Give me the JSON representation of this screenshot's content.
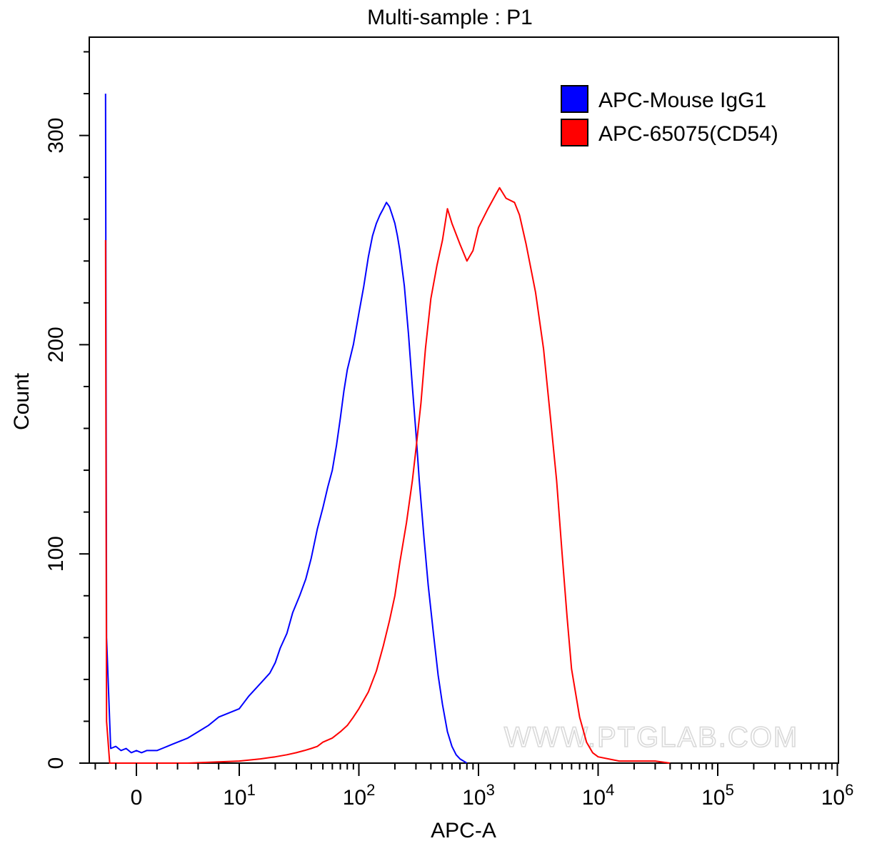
{
  "chart_data": {
    "type": "line",
    "title": "Multi-sample : P1",
    "xlabel": "APC-A",
    "ylabel": "Count",
    "x_scale": "biexponential",
    "ylim": [
      0,
      300
    ],
    "x_ticks": [
      {
        "value": 0,
        "label": "0",
        "exp": ""
      },
      {
        "value": 10,
        "label": "10",
        "exp": "1"
      },
      {
        "value": 100,
        "label": "10",
        "exp": "2"
      },
      {
        "value": 1000,
        "label": "10",
        "exp": "3"
      },
      {
        "value": 10000,
        "label": "10",
        "exp": "4"
      },
      {
        "value": 100000,
        "label": "10",
        "exp": "5"
      },
      {
        "value": 1000000,
        "label": "10",
        "exp": "6"
      }
    ],
    "y_ticks": [
      0,
      100,
      200,
      300
    ],
    "legend_position": "top-right",
    "grid": false,
    "watermark": "WWW.PTGLAB.COM",
    "series": [
      {
        "name": "APC-Mouse IgG1",
        "color": "#0000ff",
        "points": [
          [
            -3,
            320
          ],
          [
            -2.9,
            60
          ],
          [
            -2.5,
            7
          ],
          [
            -2,
            8
          ],
          [
            -1.5,
            6
          ],
          [
            -1,
            7
          ],
          [
            -0.5,
            5
          ],
          [
            0,
            6
          ],
          [
            0.5,
            5
          ],
          [
            1,
            6
          ],
          [
            1.5,
            6
          ],
          [
            2,
            6
          ],
          [
            2.5,
            7
          ],
          [
            3,
            8
          ],
          [
            3.5,
            9
          ],
          [
            4,
            10
          ],
          [
            5,
            12
          ],
          [
            6,
            15
          ],
          [
            7,
            18
          ],
          [
            8,
            22
          ],
          [
            10,
            26
          ],
          [
            12,
            32
          ],
          [
            15,
            38
          ],
          [
            18,
            43
          ],
          [
            20,
            48
          ],
          [
            22,
            55
          ],
          [
            25,
            62
          ],
          [
            28,
            72
          ],
          [
            32,
            80
          ],
          [
            36,
            88
          ],
          [
            40,
            98
          ],
          [
            45,
            112
          ],
          [
            50,
            122
          ],
          [
            55,
            132
          ],
          [
            60,
            140
          ],
          [
            65,
            152
          ],
          [
            70,
            165
          ],
          [
            75,
            178
          ],
          [
            80,
            188
          ],
          [
            90,
            200
          ],
          [
            100,
            215
          ],
          [
            110,
            228
          ],
          [
            120,
            242
          ],
          [
            130,
            252
          ],
          [
            140,
            258
          ],
          [
            150,
            262
          ],
          [
            160,
            265
          ],
          [
            170,
            268
          ],
          [
            180,
            266
          ],
          [
            190,
            262
          ],
          [
            200,
            258
          ],
          [
            210,
            252
          ],
          [
            220,
            245
          ],
          [
            240,
            228
          ],
          [
            260,
            205
          ],
          [
            280,
            180
          ],
          [
            300,
            158
          ],
          [
            320,
            135
          ],
          [
            350,
            108
          ],
          [
            380,
            85
          ],
          [
            420,
            62
          ],
          [
            460,
            42
          ],
          [
            500,
            28
          ],
          [
            550,
            15
          ],
          [
            600,
            8
          ],
          [
            650,
            4
          ],
          [
            700,
            2
          ],
          [
            800,
            0
          ]
        ]
      },
      {
        "name": "APC-65075(CD54)",
        "color": "#ff0000",
        "points": [
          [
            -3,
            250
          ],
          [
            -2.9,
            20
          ],
          [
            -2.6,
            0
          ],
          [
            5,
            0
          ],
          [
            10,
            1
          ],
          [
            15,
            2
          ],
          [
            20,
            3
          ],
          [
            25,
            4
          ],
          [
            30,
            5
          ],
          [
            35,
            6
          ],
          [
            40,
            7
          ],
          [
            45,
            8
          ],
          [
            50,
            10
          ],
          [
            60,
            12
          ],
          [
            70,
            15
          ],
          [
            80,
            18
          ],
          [
            90,
            22
          ],
          [
            100,
            26
          ],
          [
            120,
            34
          ],
          [
            140,
            44
          ],
          [
            160,
            56
          ],
          [
            180,
            68
          ],
          [
            200,
            80
          ],
          [
            220,
            96
          ],
          [
            250,
            115
          ],
          [
            280,
            135
          ],
          [
            300,
            150
          ],
          [
            330,
            172
          ],
          [
            360,
            198
          ],
          [
            400,
            222
          ],
          [
            450,
            238
          ],
          [
            500,
            250
          ],
          [
            550,
            265
          ],
          [
            600,
            258
          ],
          [
            700,
            248
          ],
          [
            800,
            240
          ],
          [
            900,
            245
          ],
          [
            1000,
            256
          ],
          [
            1200,
            265
          ],
          [
            1400,
            272
          ],
          [
            1500,
            275
          ],
          [
            1700,
            270
          ],
          [
            2000,
            268
          ],
          [
            2200,
            262
          ],
          [
            2500,
            248
          ],
          [
            3000,
            225
          ],
          [
            3500,
            198
          ],
          [
            4000,
            165
          ],
          [
            4500,
            135
          ],
          [
            5000,
            100
          ],
          [
            5500,
            70
          ],
          [
            6000,
            45
          ],
          [
            7000,
            22
          ],
          [
            8000,
            10
          ],
          [
            9000,
            5
          ],
          [
            10000,
            3
          ],
          [
            15000,
            1
          ],
          [
            20000,
            1
          ],
          [
            30000,
            1
          ],
          [
            40000,
            0
          ]
        ]
      }
    ]
  }
}
